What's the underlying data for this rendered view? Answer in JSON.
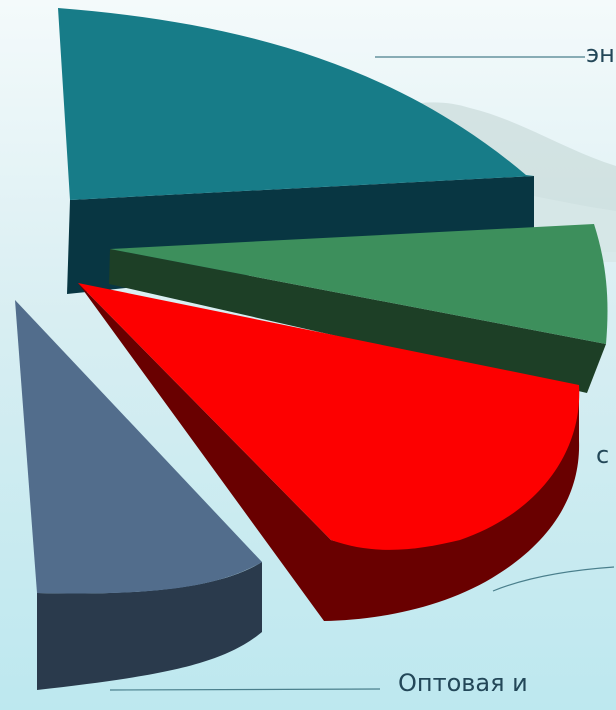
{
  "chart_data": {
    "type": "pie",
    "style": "3d-exploded",
    "slices": [
      {
        "label": "эн",
        "value": 35,
        "top_color": "#177c88",
        "side_color": "#083642"
      },
      {
        "label": "",
        "value": 14,
        "top_color": "#3d8f5c",
        "side_color": "#1d3f26"
      },
      {
        "label": "",
        "value": 23,
        "top_color": "#fd0000",
        "side_color": "#690000"
      },
      {
        "label": "Оптовая и",
        "value": 9,
        "top_color": "#526d8c",
        "side_color": "#2a3a4c"
      }
    ],
    "partial_labels": [
      {
        "id": "label-mid-right",
        "text": "с"
      }
    ],
    "background": {
      "sky": "#e8f4f6",
      "water": "#bfe6ef",
      "trees": "#b7cdcb"
    }
  }
}
